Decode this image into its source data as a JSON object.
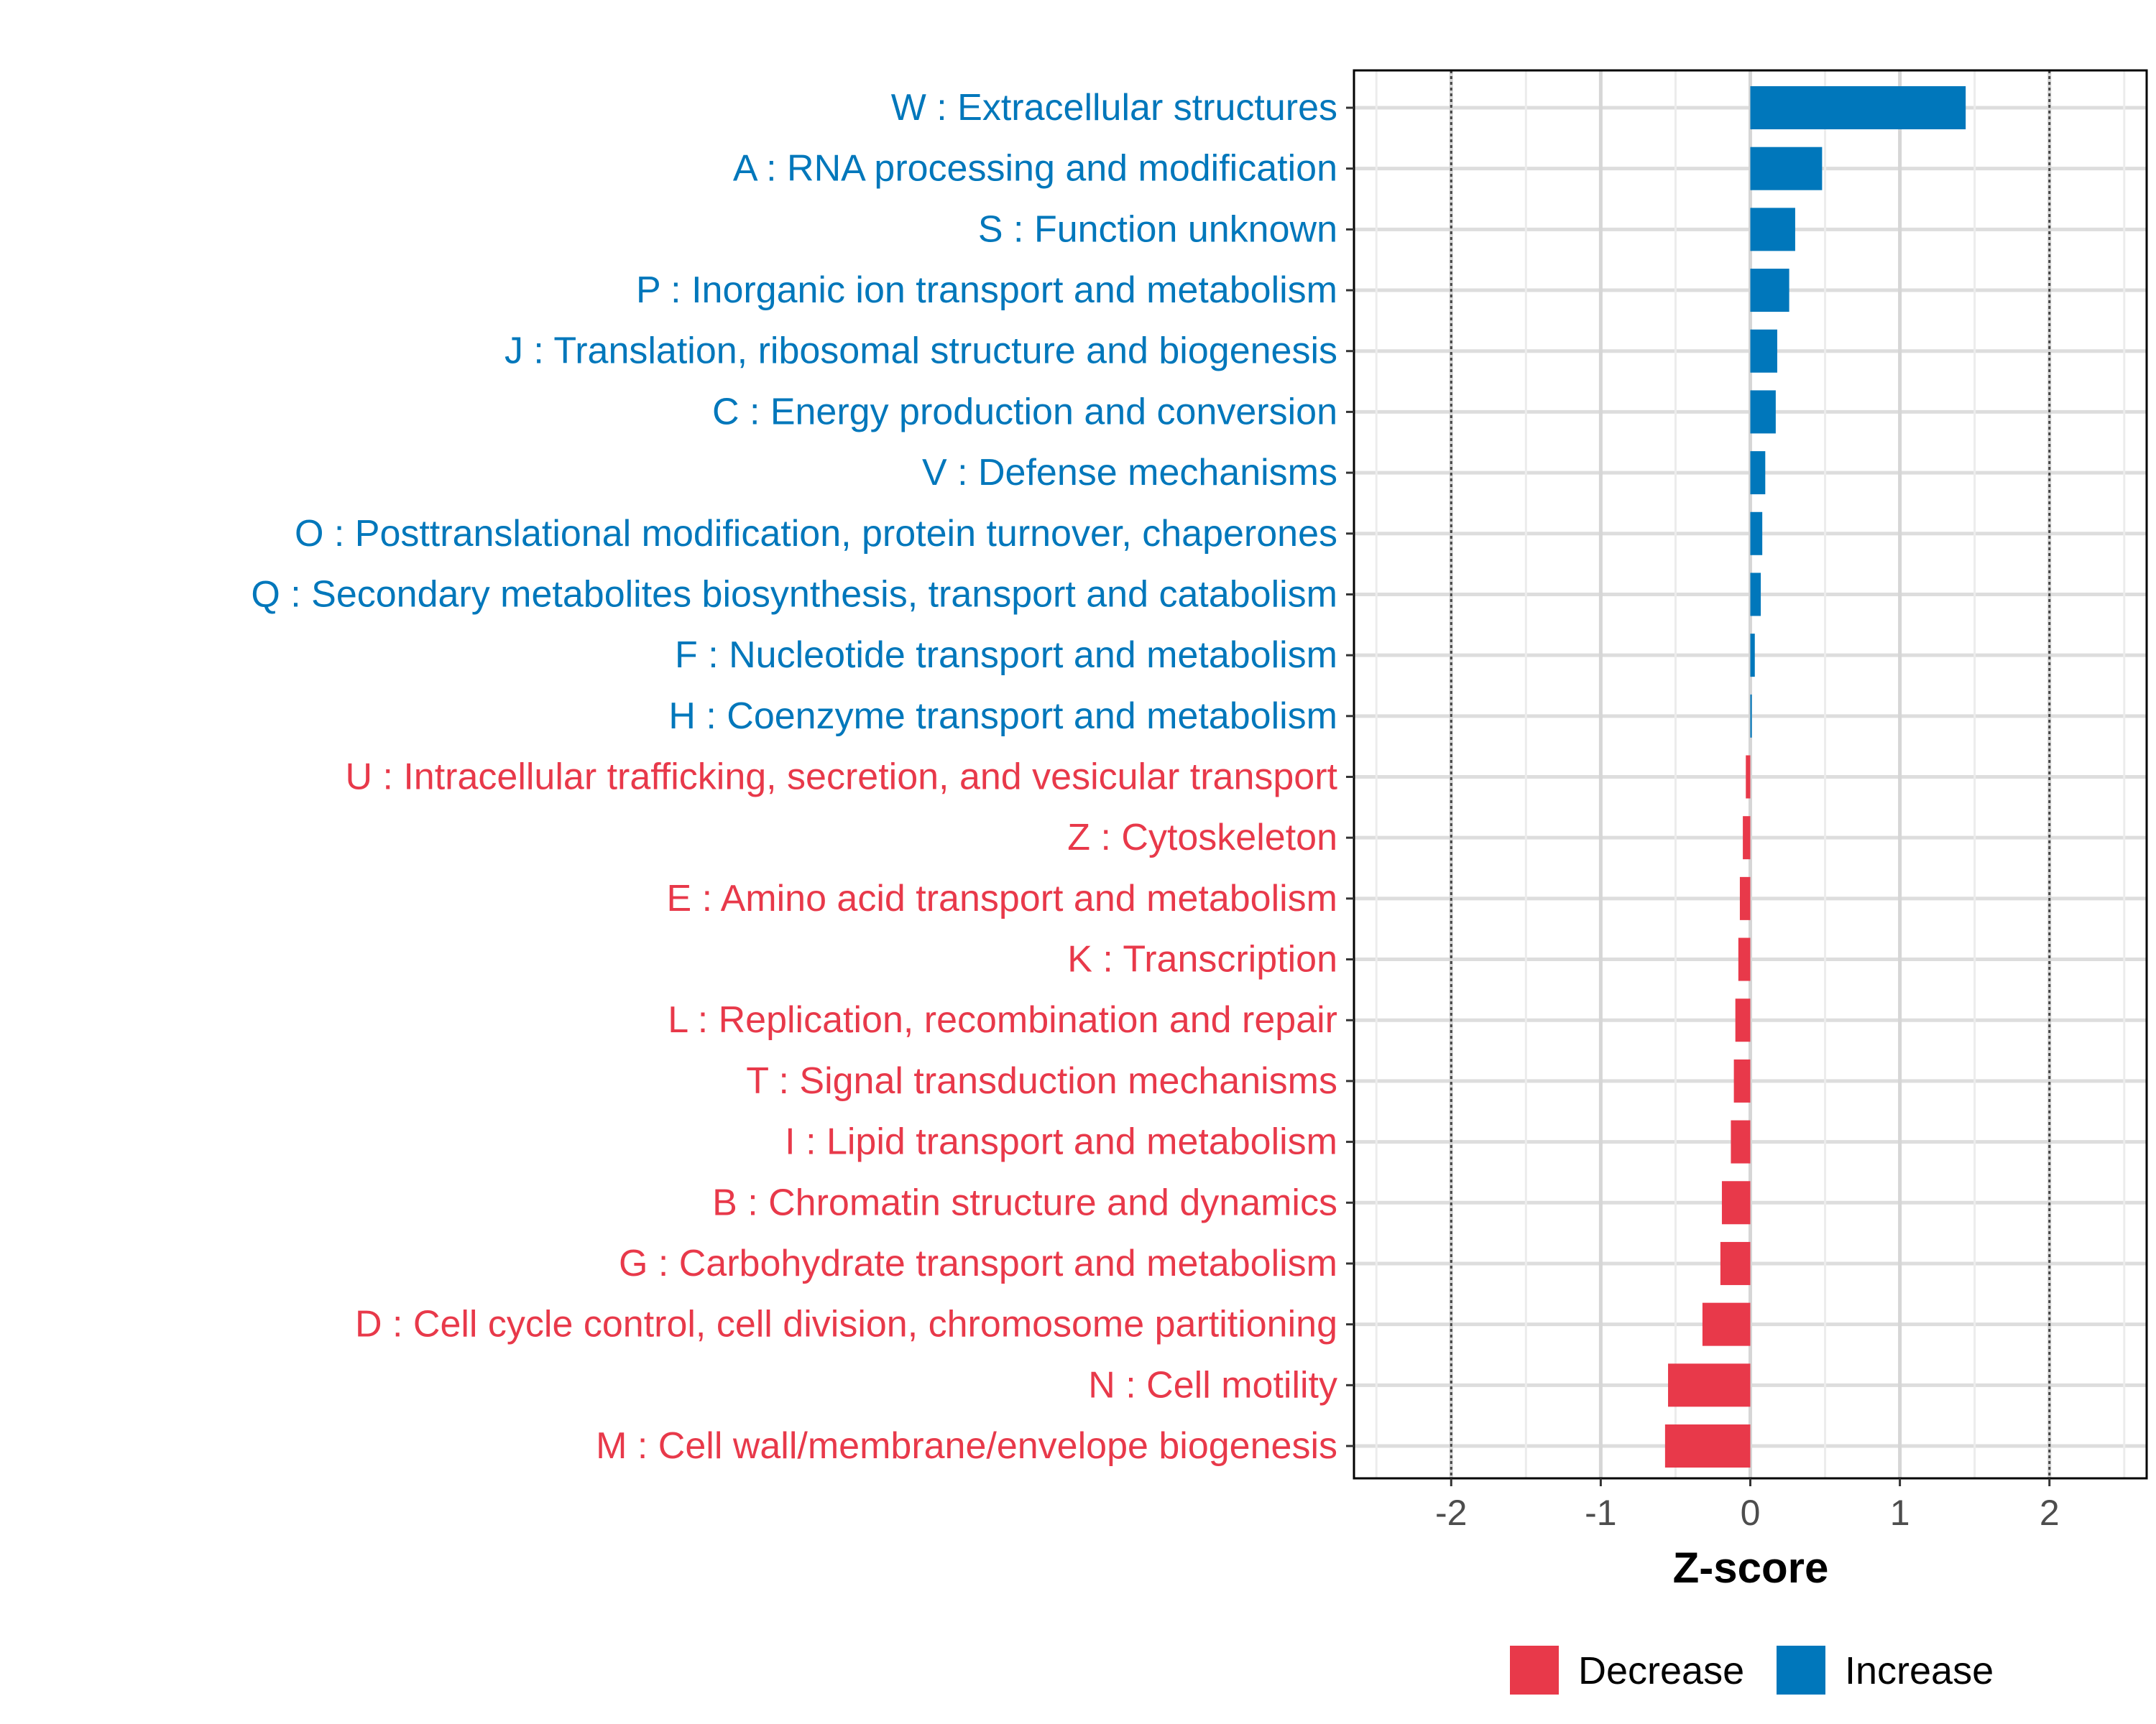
{
  "chart_data": {
    "type": "bar",
    "orientation": "horizontal",
    "xlabel": "Z-score",
    "xlim": [
      -2.65,
      2.65
    ],
    "xticks": [
      -2,
      -1,
      0,
      1,
      2
    ],
    "xtick_labels": [
      "-2",
      "-1",
      "0",
      "1",
      "2"
    ],
    "reference_lines": [
      -2,
      2
    ],
    "grid": true,
    "colors": {
      "Decrease": "#E8394A",
      "Increase": "#0077BB"
    },
    "legend": {
      "position": "bottom",
      "entries": [
        {
          "label": "Decrease",
          "color": "#E8394A"
        },
        {
          "label": "Increase",
          "color": "#0077BB"
        }
      ]
    },
    "categories": [
      "W : Extracellular structures",
      "A : RNA processing and modification",
      "S : Function unknown",
      "P : Inorganic ion transport and metabolism",
      "J : Translation, ribosomal structure and biogenesis",
      "C : Energy production and conversion",
      "V : Defense mechanisms",
      "O : Posttranslational modification, protein turnover, chaperones",
      "Q : Secondary metabolites biosynthesis, transport and catabolism",
      "F : Nucleotide transport and metabolism",
      "H : Coenzyme transport and metabolism",
      "U : Intracellular trafficking, secretion, and vesicular transport",
      "Z : Cytoskeleton",
      "E : Amino acid transport and metabolism",
      "K : Transcription",
      "L : Replication, recombination and repair",
      "T : Signal transduction mechanisms",
      "I : Lipid transport and metabolism",
      "B : Chromatin structure and dynamics",
      "G : Carbohydrate transport and metabolism",
      "D : Cell cycle control, cell division, chromosome partitioning",
      "N : Cell motility",
      "M : Cell wall/membrane/envelope biogenesis"
    ],
    "values": [
      1.44,
      0.48,
      0.3,
      0.26,
      0.18,
      0.17,
      0.1,
      0.08,
      0.07,
      0.03,
      0.01,
      -0.03,
      -0.05,
      -0.07,
      -0.08,
      -0.1,
      -0.11,
      -0.13,
      -0.19,
      -0.2,
      -0.32,
      -0.55,
      -0.57
    ],
    "groups": [
      "Increase",
      "Increase",
      "Increase",
      "Increase",
      "Increase",
      "Increase",
      "Increase",
      "Increase",
      "Increase",
      "Increase",
      "Increase",
      "Decrease",
      "Decrease",
      "Decrease",
      "Decrease",
      "Decrease",
      "Decrease",
      "Decrease",
      "Decrease",
      "Decrease",
      "Decrease",
      "Decrease",
      "Decrease"
    ]
  }
}
